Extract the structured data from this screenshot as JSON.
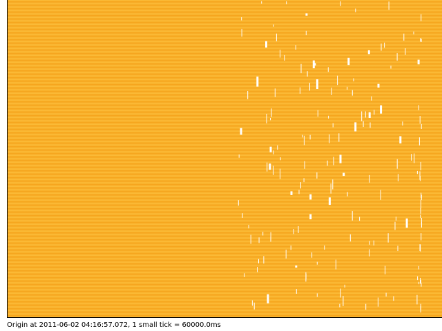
{
  "chart_data": {
    "type": "timeline",
    "caption": "Origin at 2011-06-02 04:16:57.072, 1 small tick = 60000.0ms",
    "origin": "2011-06-02 04:16:57.072",
    "small_tick_ms": 60000.0,
    "track_count": 92,
    "fill_extent_fraction": 1.0,
    "gap_region_start_fraction": 0.53
  },
  "colors": {
    "background": "#ffffff",
    "band_light": "#fcbf3c",
    "band_dark": "#f5a31b",
    "gap": "#ffffff",
    "axis": "#000000"
  }
}
